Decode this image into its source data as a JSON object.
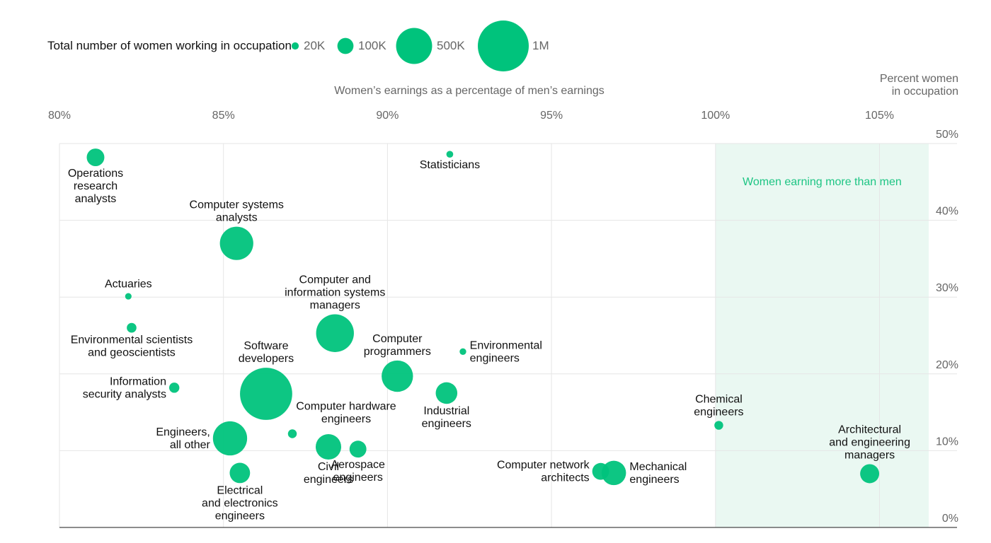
{
  "chart_data": {
    "type": "scatter",
    "title": "",
    "xlabel": "Women’s earnings as a percentage of men’s earnings",
    "ylabel": [
      "Percent women",
      "in occupation"
    ],
    "xlim": [
      80,
      106.5
    ],
    "ylim": [
      0,
      50
    ],
    "x_ticks": [
      80,
      85,
      90,
      95,
      100,
      105
    ],
    "x_tick_labels": [
      "80%",
      "85%",
      "90%",
      "95%",
      "100%",
      "105%"
    ],
    "y_ticks": [
      50,
      40,
      30,
      20,
      10,
      0
    ],
    "y_tick_labels": [
      "50%",
      "40%",
      "30%",
      "20%",
      "10%",
      "0%"
    ],
    "color": "#00c37c",
    "shade_color": "#eaf8f2",
    "shaded_region": {
      "x_from": 100,
      "x_to": 106.5,
      "label": "Women earning more than men"
    },
    "size_legend": {
      "title": "Total number of women working in occupation",
      "entries": [
        {
          "label": "20K",
          "value": 20000
        },
        {
          "label": "100K",
          "value": 100000
        },
        {
          "label": "500K",
          "value": 500000
        },
        {
          "label": "1M",
          "value": 1000000
        }
      ]
    },
    "points": [
      {
        "name": "Operations research analysts",
        "lines": [
          "Operations",
          "research",
          "analysts"
        ],
        "x": 81.1,
        "y": 48.2,
        "women": 120000,
        "label_pos": "below"
      },
      {
        "name": "Statisticians",
        "lines": [
          "Statisticians"
        ],
        "x": 91.9,
        "y": 48.6,
        "women": 18000,
        "label_pos": "below"
      },
      {
        "name": "Computer systems analysts",
        "lines": [
          "Computer systems",
          "analysts"
        ],
        "x": 85.4,
        "y": 37.0,
        "women": 430000,
        "label_pos": "above"
      },
      {
        "name": "Actuaries",
        "lines": [
          "Actuaries"
        ],
        "x": 82.1,
        "y": 30.1,
        "women": 16000,
        "label_pos": "above"
      },
      {
        "name": "Environmental scientists and geoscientists",
        "lines": [
          "Environmental scientists",
          "and geoscientists"
        ],
        "x": 82.2,
        "y": 26.0,
        "women": 36000,
        "label_pos": "below"
      },
      {
        "name": "Computer and information systems managers",
        "lines": [
          "Computer and",
          "information systems",
          "managers"
        ],
        "x": 88.4,
        "y": 25.3,
        "women": 550000,
        "label_pos": "above"
      },
      {
        "name": "Software developers",
        "lines": [
          "Software",
          "developers"
        ],
        "x": 86.3,
        "y": 17.4,
        "women": 1050000,
        "label_pos": "above"
      },
      {
        "name": "Computer programmers",
        "lines": [
          "Computer",
          "programmers"
        ],
        "x": 90.3,
        "y": 19.7,
        "women": 380000,
        "label_pos": "above"
      },
      {
        "name": "Environmental engineers",
        "lines": [
          "Environmental",
          "engineers"
        ],
        "x": 92.3,
        "y": 22.9,
        "women": 17000,
        "label_pos": "right"
      },
      {
        "name": "Information security analysts",
        "lines": [
          "Information",
          "security analysts"
        ],
        "x": 83.5,
        "y": 18.2,
        "women": 40000,
        "label_pos": "left"
      },
      {
        "name": "Industrial engineers",
        "lines": [
          "Industrial",
          "engineers"
        ],
        "x": 91.8,
        "y": 17.5,
        "women": 180000,
        "label_pos": "below"
      },
      {
        "name": "Computer hardware engineers",
        "lines": [
          "Computer hardware",
          "engineers"
        ],
        "x": 87.1,
        "y": 12.2,
        "women": 30000,
        "label_pos": "above-right"
      },
      {
        "name": "Engineers, all other",
        "lines": [
          "Engineers,",
          "all other"
        ],
        "x": 85.2,
        "y": 11.6,
        "women": 450000,
        "label_pos": "left"
      },
      {
        "name": "Civil engineers",
        "lines": [
          "Civil",
          "engineers"
        ],
        "x": 88.2,
        "y": 10.5,
        "women": 250000,
        "label_pos": "below"
      },
      {
        "name": "Aerospace engineers",
        "lines": [
          "Aerospace",
          "engineers"
        ],
        "x": 89.1,
        "y": 10.2,
        "women": 110000,
        "label_pos": "below"
      },
      {
        "name": "Electrical and electronics engineers",
        "lines": [
          "Electrical",
          "and electronics",
          "engineers"
        ],
        "x": 85.5,
        "y": 7.1,
        "women": 160000,
        "label_pos": "below"
      },
      {
        "name": "Chemical engineers",
        "lines": [
          "Chemical",
          "engineers"
        ],
        "x": 100.1,
        "y": 13.3,
        "women": 30000,
        "label_pos": "above"
      },
      {
        "name": "Computer network architects",
        "lines": [
          "Computer network",
          "architects"
        ],
        "x": 96.5,
        "y": 7.3,
        "women": 110000,
        "label_pos": "left"
      },
      {
        "name": "Mechanical engineers",
        "lines": [
          "Mechanical",
          "engineers"
        ],
        "x": 96.9,
        "y": 7.1,
        "women": 230000,
        "label_pos": "right"
      },
      {
        "name": "Architectural and engineering managers",
        "lines": [
          "Architectural",
          "and engineering",
          "managers"
        ],
        "x": 104.7,
        "y": 7.0,
        "women": 140000,
        "label_pos": "above"
      }
    ]
  }
}
